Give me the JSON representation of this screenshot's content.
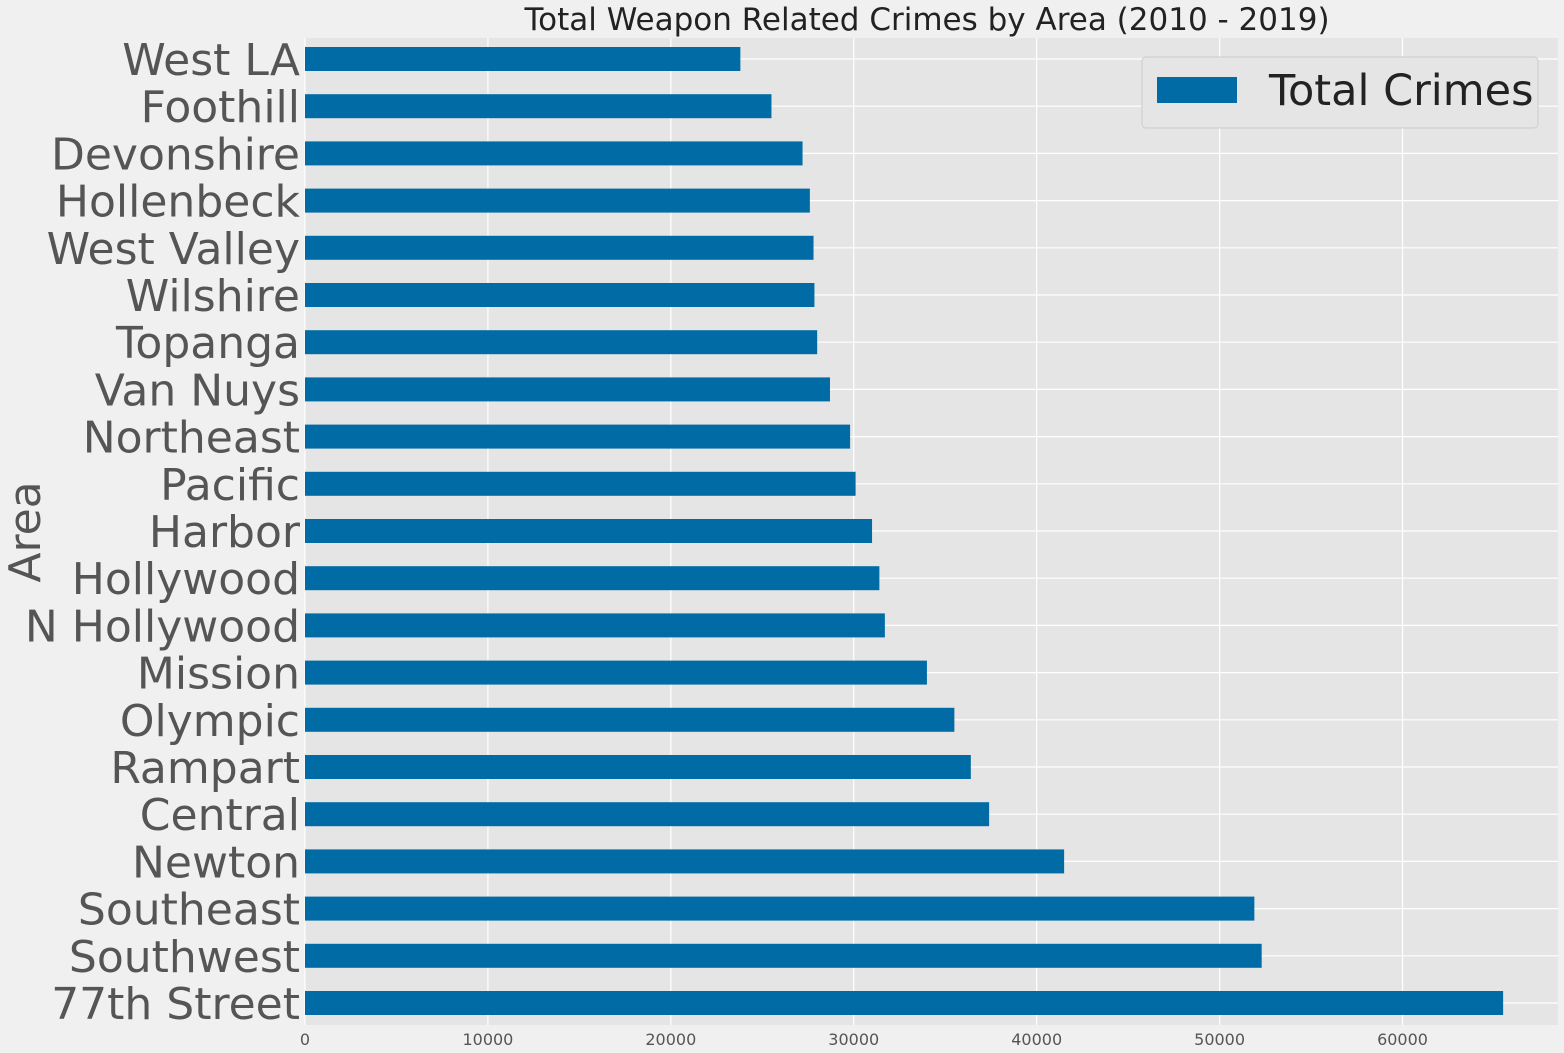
{
  "chart_data": {
    "type": "bar",
    "orientation": "horizontal",
    "title": "Total Weapon Related Crimes by Area (2010 - 2019)",
    "xlabel": "",
    "ylabel": "Area",
    "xlim": [
      0,
      68500
    ],
    "xticks": [
      0,
      10000,
      20000,
      30000,
      40000,
      50000,
      60000
    ],
    "grid": true,
    "legend_position": "top-right",
    "bar_color": "#006ba4",
    "categories": [
      "77th Street",
      "Southwest",
      "Southeast",
      "Newton",
      "Central",
      "Rampart",
      "Olympic",
      "Mission",
      "N Hollywood",
      "Hollywood",
      "Harbor",
      "Pacific",
      "Northeast",
      "Van Nuys",
      "Topanga",
      "Wilshire",
      "West Valley",
      "Hollenbeck",
      "Devonshire",
      "Foothill",
      "West LA"
    ],
    "series": [
      {
        "name": "Total Crimes",
        "values": [
          65500,
          52300,
          51900,
          41500,
          37400,
          36400,
          35500,
          34000,
          31700,
          31400,
          31000,
          30100,
          29800,
          28700,
          28000,
          27850,
          27800,
          27600,
          27200,
          25500,
          23800
        ]
      }
    ]
  }
}
